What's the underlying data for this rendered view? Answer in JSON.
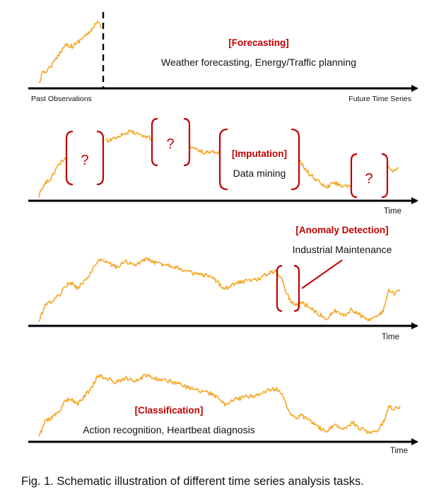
{
  "figure": {
    "caption": "Fig. 1. Schematic illustration of different time series analysis tasks."
  },
  "colors": {
    "series": "#F5A623",
    "accent": "#C00000",
    "axis": "#000000"
  },
  "panels": {
    "forecasting": {
      "title": "[Forecasting]",
      "subtitle": "Weather forecasting, Energy/Traffic planning",
      "left_label": "Past Observations",
      "right_label": "Future Time Series"
    },
    "imputation": {
      "title": "[Imputation]",
      "subtitle": "Data mining",
      "missing_mark": "?",
      "axis_label": "Time"
    },
    "anomaly": {
      "title": "[Anomaly Detection]",
      "subtitle": "Industrial Maintenance",
      "axis_label": "Time"
    },
    "classification": {
      "title": "[Classification]",
      "subtitle": "Action recognition, Heartbeat diagnosis",
      "axis_label": "Time"
    }
  }
}
